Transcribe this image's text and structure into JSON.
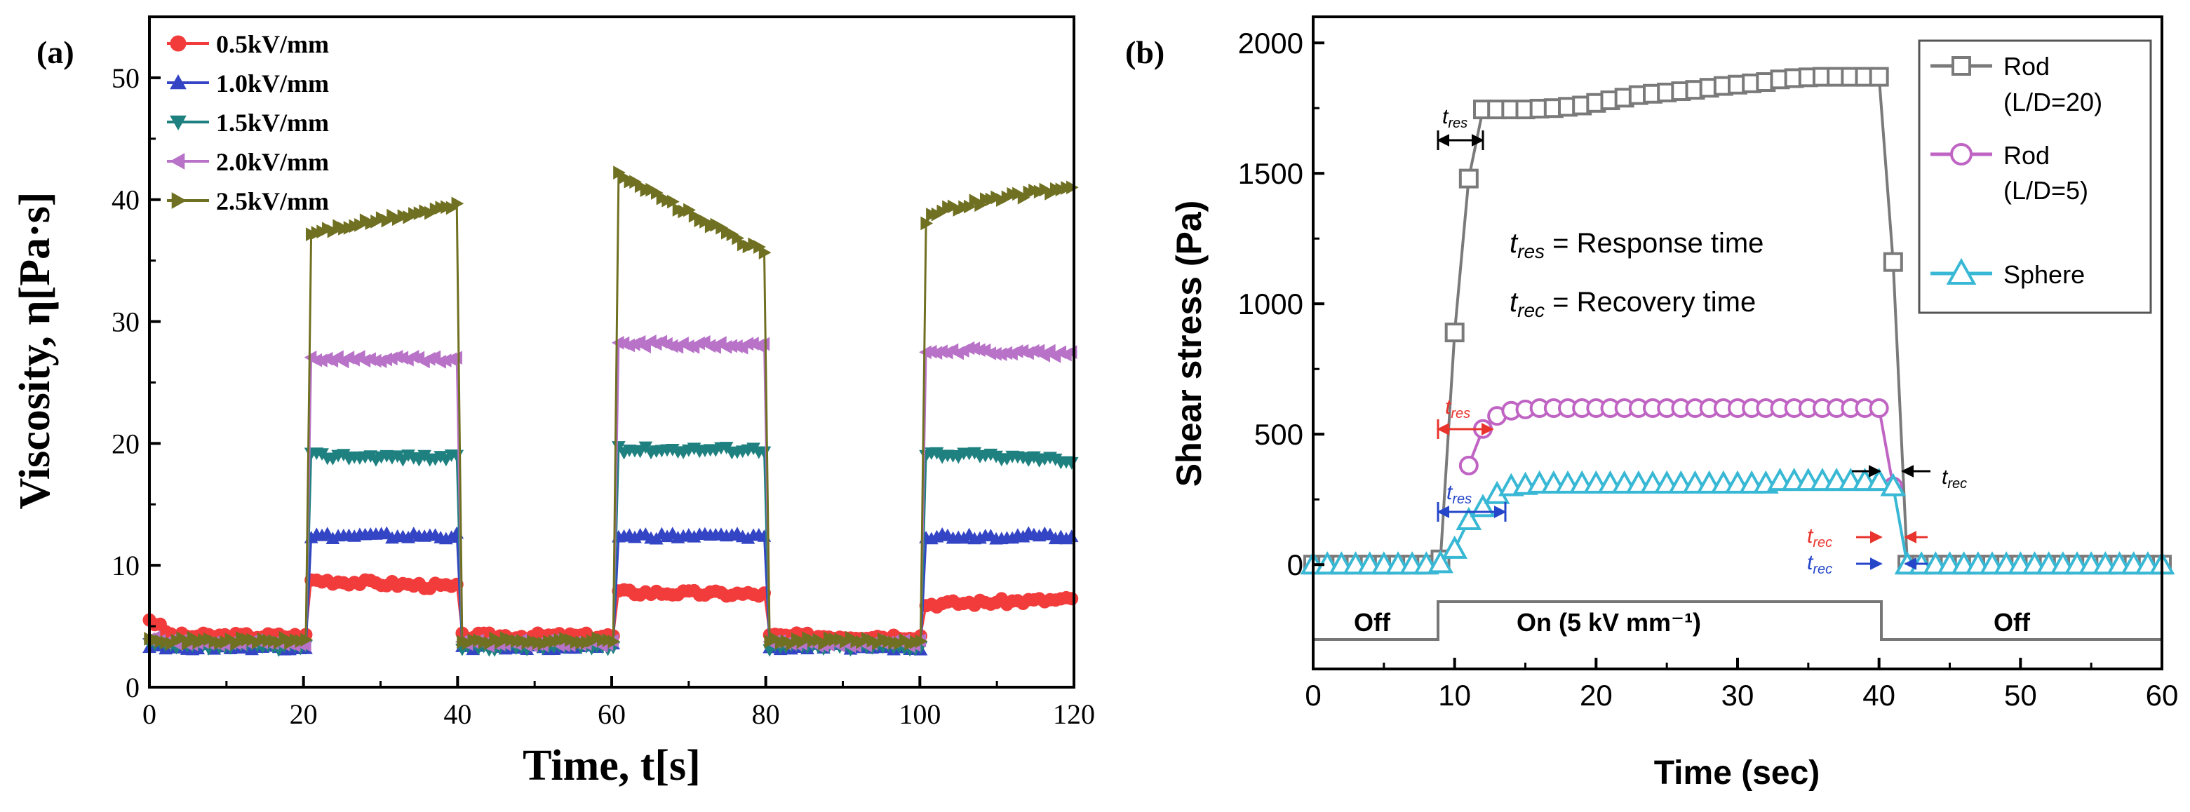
{
  "chart_data": [
    {
      "type": "scatter",
      "panel_label": "(a)",
      "xlabel": "Time, t[s]",
      "ylabel": "Viscosity, η[Pa·s]",
      "xlim": [
        0,
        120
      ],
      "ylim": [
        0,
        55
      ],
      "x_ticks": [
        "0",
        "20",
        "40",
        "60",
        "80",
        "100",
        "120"
      ],
      "y_ticks": [
        "0",
        "10",
        "20",
        "30",
        "40",
        "50"
      ],
      "legend_position": "top-left",
      "series": [
        {
          "name": "0.5kV/mm",
          "color": "#f23c3c",
          "marker": "circle",
          "off_level": 4.2,
          "on_levels": [
            [
              8.8,
              8.2
            ],
            [
              7.8,
              7.6
            ],
            [
              6.8,
              7.2
            ]
          ],
          "first_value": 5.6
        },
        {
          "name": "1.0kV/mm",
          "color": "#3344c4",
          "marker": "triangle-up",
          "off_level": 3.3,
          "on_levels": [
            [
              12.4,
              12.4
            ],
            [
              12.4,
              12.4
            ],
            [
              12.4,
              12.4
            ]
          ],
          "first_value": 3.5
        },
        {
          "name": "1.5kV/mm",
          "color": "#1f8080",
          "marker": "triangle-down",
          "off_level": 3.3,
          "on_levels": [
            [
              19.0,
              18.8
            ],
            [
              19.5,
              19.5
            ],
            [
              19.2,
              18.6
            ]
          ],
          "first_value": 3.5
        },
        {
          "name": "2.0kV/mm",
          "color": "#b873c8",
          "marker": "triangle-left",
          "off_level": 3.6,
          "on_levels": [
            [
              27.0,
              26.8
            ],
            [
              28.2,
              28.0
            ],
            [
              27.7,
              27.3
            ]
          ],
          "first_value": 4.0
        },
        {
          "name": "2.5kV/mm",
          "color": "#707022",
          "marker": "triangle-right",
          "off_level": 3.8,
          "on_levels": [
            [
              37.2,
              39.5
            ],
            [
              42.5,
              35.5
            ],
            [
              38.0,
              41.0
            ]
          ],
          "first_value": 4.2
        }
      ],
      "on_intervals": [
        [
          20,
          40
        ],
        [
          60,
          80
        ],
        [
          100,
          120
        ]
      ]
    },
    {
      "type": "line",
      "panel_label": "(b)",
      "xlabel": "Time (sec)",
      "ylabel": "Shear stress (Pa)",
      "xlim": [
        0,
        60
      ],
      "ylim": [
        -400,
        2100
      ],
      "x_ticks": [
        "0",
        "10",
        "20",
        "30",
        "40",
        "50",
        "60"
      ],
      "y_ticks": [
        "0",
        "500",
        "1000",
        "1500",
        "2000"
      ],
      "legend_position": "top-right",
      "series": [
        {
          "name": "Rod",
          "name2": "(L/D=20)",
          "color": "#7a7a7a",
          "marker": "square",
          "x": [
            0,
            1,
            2,
            3,
            4,
            5,
            6,
            7,
            8,
            9,
            10,
            11,
            12,
            13,
            14,
            15,
            16,
            17,
            18,
            19,
            20,
            21,
            22,
            23,
            24,
            25,
            26,
            27,
            28,
            29,
            30,
            31,
            32,
            33,
            34,
            35,
            36,
            37,
            38,
            39,
            40,
            41,
            42,
            43,
            44,
            45,
            46,
            47,
            48,
            49,
            50,
            51,
            52,
            53,
            54,
            55,
            56,
            57,
            58,
            59,
            60
          ],
          "y": [
            0,
            0,
            0,
            0,
            0,
            0,
            0,
            0,
            0,
            20,
            890,
            1480,
            1745,
            1745,
            1745,
            1745,
            1748,
            1750,
            1755,
            1760,
            1770,
            1780,
            1790,
            1800,
            1805,
            1810,
            1815,
            1820,
            1828,
            1835,
            1840,
            1845,
            1850,
            1860,
            1865,
            1868,
            1870,
            1870,
            1870,
            1870,
            1870,
            1160,
            0,
            0,
            0,
            0,
            0,
            0,
            0,
            0,
            0,
            0,
            0,
            0,
            0,
            0,
            0,
            0,
            0,
            0,
            0
          ]
        },
        {
          "name": "Rod",
          "name2": "(L/D=5)",
          "color": "#c064c4",
          "marker": "circle",
          "x": [
            11,
            12,
            13,
            14,
            15,
            16,
            17,
            18,
            19,
            20,
            21,
            22,
            23,
            24,
            25,
            26,
            27,
            28,
            29,
            30,
            31,
            32,
            33,
            34,
            35,
            36,
            37,
            38,
            39,
            40,
            41
          ],
          "y": [
            380,
            520,
            570,
            590,
            595,
            600,
            600,
            600,
            600,
            600,
            600,
            600,
            600,
            600,
            600,
            600,
            600,
            600,
            600,
            600,
            600,
            600,
            600,
            600,
            600,
            600,
            600,
            600,
            600,
            600,
            300
          ]
        },
        {
          "name": "Sphere",
          "name2": "",
          "color": "#38b8d4",
          "marker": "triangle-up",
          "x": [
            0,
            1,
            2,
            3,
            4,
            5,
            6,
            7,
            8,
            9,
            10,
            11,
            12,
            13,
            14,
            15,
            16,
            17,
            18,
            19,
            20,
            21,
            22,
            23,
            24,
            25,
            26,
            27,
            28,
            29,
            30,
            31,
            32,
            33,
            34,
            35,
            36,
            37,
            38,
            39,
            40,
            41,
            42,
            43,
            44,
            45,
            46,
            47,
            48,
            49,
            50,
            51,
            52,
            53,
            54,
            55,
            56,
            57,
            58,
            59,
            60
          ],
          "y": [
            0,
            0,
            0,
            0,
            0,
            0,
            0,
            0,
            0,
            5,
            60,
            170,
            220,
            270,
            300,
            305,
            310,
            310,
            310,
            310,
            310,
            310,
            310,
            310,
            310,
            310,
            310,
            310,
            310,
            310,
            310,
            310,
            310,
            320,
            320,
            320,
            320,
            320,
            320,
            320,
            320,
            300,
            0,
            0,
            0,
            0,
            0,
            0,
            0,
            0,
            0,
            0,
            0,
            0,
            0,
            0,
            0,
            0,
            0,
            0,
            0
          ]
        }
      ],
      "annotations": {
        "t_res": "t",
        "t_res_sub": "res",
        "t_rec": "t",
        "t_rec_sub": "rec",
        "response_def": " = Response time",
        "recovery_def": " = Recovery time",
        "off_left": "Off",
        "on_label": "On (5 kV mm⁻¹)",
        "off_right": "Off"
      }
    }
  ]
}
